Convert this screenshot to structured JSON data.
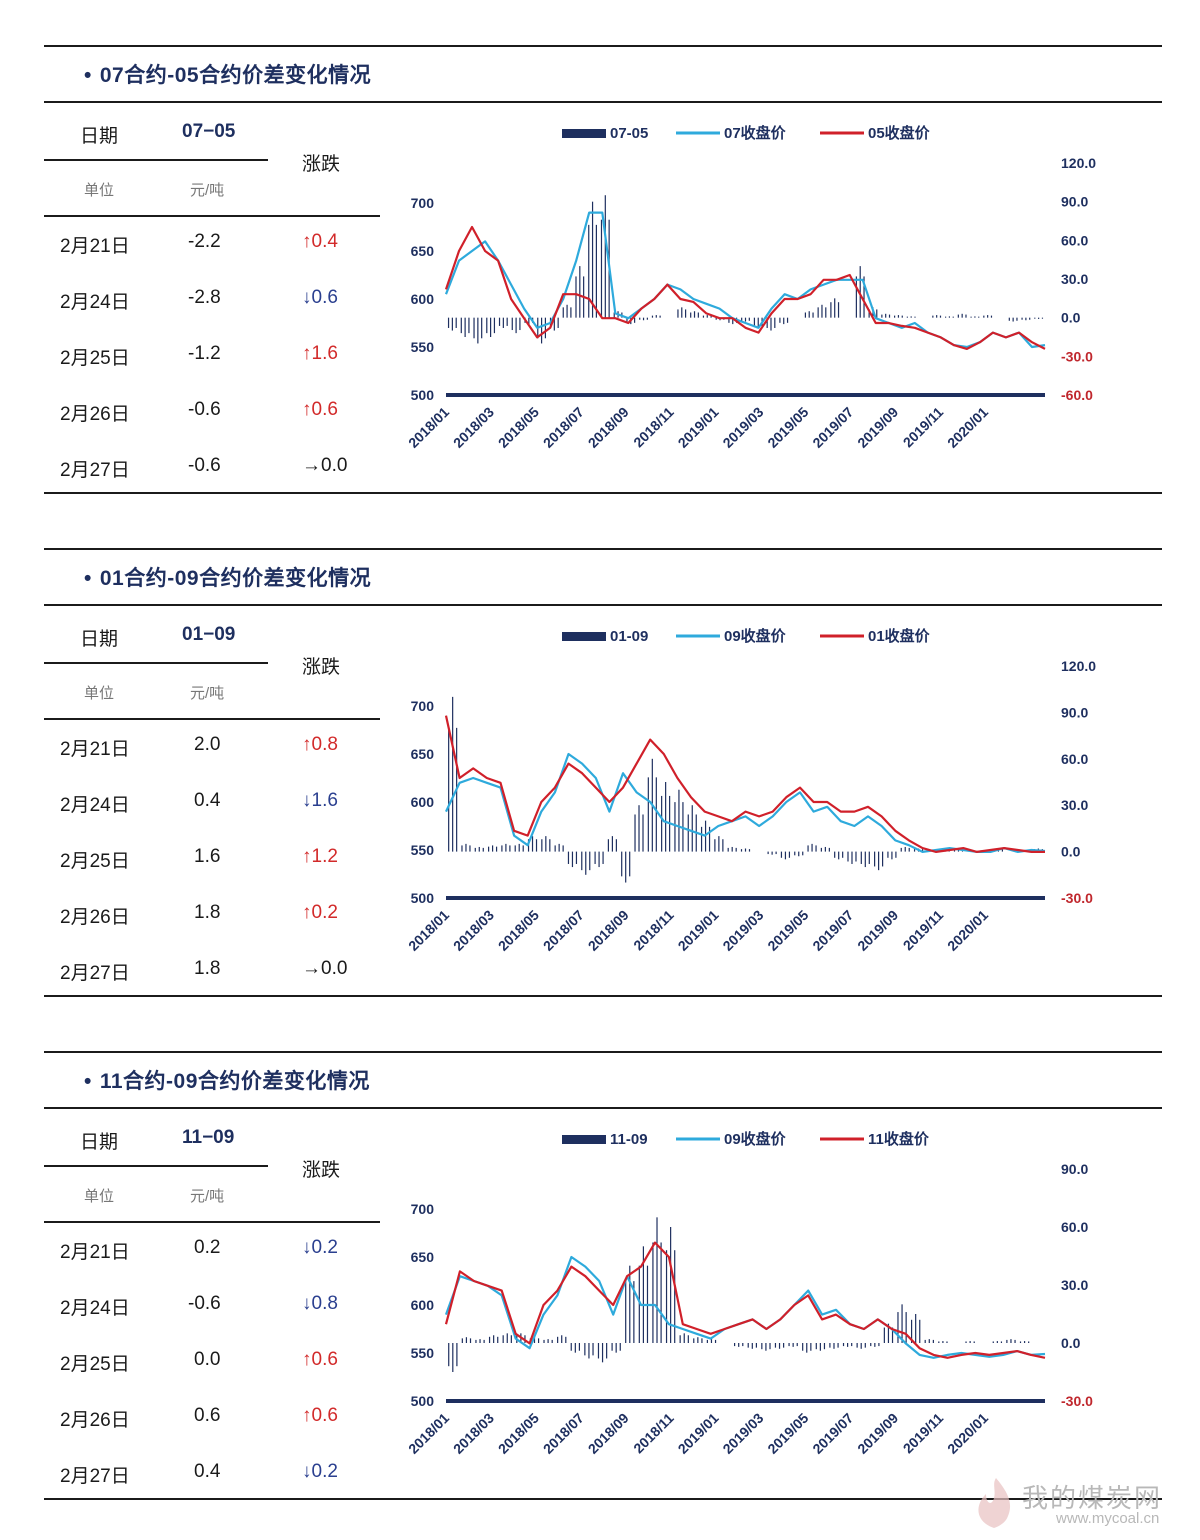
{
  "watermark": {
    "site": "我的煤炭网",
    "url": "www.mycoal.cn"
  },
  "colors": {
    "bar": "#1e2f5f",
    "line_a": "#2eaadc",
    "line_b": "#d0202a",
    "rule": "#1b1b1b"
  },
  "sections": [
    {
      "title": "07合约-05合约价差变化情况",
      "table": {
        "date_label": "日期",
        "code": "07−05",
        "change_label": "涨跌",
        "unit_label": "单位",
        "unit": "元/吨",
        "rows": [
          {
            "date": "2月21日",
            "value": "-2.2",
            "arrow": "↑",
            "dir": "up",
            "change": "0.4"
          },
          {
            "date": "2月24日",
            "value": "-2.8",
            "arrow": "↓",
            "dir": "down",
            "change": "0.6"
          },
          {
            "date": "2月25日",
            "value": "-1.2",
            "arrow": "↑",
            "dir": "up",
            "change": "1.6"
          },
          {
            "date": "2月26日",
            "value": "-0.6",
            "arrow": "↑",
            "dir": "up",
            "change": "0.6"
          },
          {
            "date": "2月27日",
            "value": "-0.6",
            "arrow": "→",
            "dir": "flat",
            "change": "0.0"
          }
        ]
      },
      "chart_data": {
        "type": "bar+line",
        "legend": [
          "07-05",
          "07收盘价",
          "05收盘价"
        ],
        "x_ticks": [
          "2018/01",
          "2018/03",
          "2018/05",
          "2018/07",
          "2018/09",
          "2018/11",
          "2019/01",
          "2019/03",
          "2019/05",
          "2019/07",
          "2019/09",
          "2019/11",
          "2020/01"
        ],
        "left_axis": {
          "ticks": [
            "700",
            "650",
            "600",
            "550",
            "500"
          ],
          "range": [
            500,
            700
          ]
        },
        "right_axis": {
          "ticks": [
            "120.0",
            "90.0",
            "60.0",
            "30.0",
            "0.0",
            "-30.0",
            "-60.0"
          ],
          "range": [
            -60,
            120
          ]
        },
        "series": [
          {
            "name": "07收盘价",
            "axis": "left",
            "values": [
              605,
              640,
              650,
              660,
              640,
              615,
              590,
              570,
              575,
              600,
              640,
              690,
              690,
              585,
              580,
              590,
              600,
              615,
              610,
              600,
              595,
              590,
              580,
              575,
              570,
              590,
              605,
              600,
              610,
              615,
              620,
              620,
              620,
              580,
              575,
              570,
              575,
              565,
              560,
              552,
              550,
              555,
              565,
              560,
              565,
              550,
              552
            ]
          },
          {
            "name": "05收盘价",
            "axis": "left",
            "values": [
              610,
              650,
              675,
              650,
              640,
              600,
              580,
              560,
              570,
              605,
              605,
              600,
              580,
              580,
              575,
              590,
              600,
              615,
              600,
              597,
              585,
              580,
              580,
              570,
              565,
              585,
              600,
              600,
              605,
              620,
              620,
              625,
              600,
              575,
              575,
              572,
              570,
              565,
              560,
              552,
              548,
              555,
              565,
              560,
              565,
              555,
              548
            ]
          },
          {
            "name": "07-05",
            "axis": "right",
            "values": [
              -10,
              -15,
              -20,
              -15,
              -8,
              -12,
              -5,
              -20,
              -10,
              10,
              40,
              90,
              95,
              5,
              -5,
              -2,
              2,
              0,
              8,
              5,
              2,
              -2,
              -5,
              -3,
              -8,
              -10,
              -5,
              0,
              5,
              10,
              15,
              0,
              40,
              8,
              3,
              2,
              1,
              0,
              2,
              1,
              3,
              1,
              2,
              0,
              -3,
              -2,
              -1
            ]
          }
        ]
      }
    },
    {
      "title": "01合约-09合约价差变化情况",
      "table": {
        "date_label": "日期",
        "code": "01−09",
        "change_label": "涨跌",
        "unit_label": "单位",
        "unit": "元/吨",
        "rows": [
          {
            "date": "2月21日",
            "value": "2.0",
            "arrow": "↑",
            "dir": "up",
            "change": "0.8"
          },
          {
            "date": "2月24日",
            "value": "0.4",
            "arrow": "↓",
            "dir": "down",
            "change": "1.6"
          },
          {
            "date": "2月25日",
            "value": "1.6",
            "arrow": "↑",
            "dir": "up",
            "change": "1.2"
          },
          {
            "date": "2月26日",
            "value": "1.8",
            "arrow": "↑",
            "dir": "up",
            "change": "0.2"
          },
          {
            "date": "2月27日",
            "value": "1.8",
            "arrow": "→",
            "dir": "flat",
            "change": "0.0"
          }
        ]
      },
      "chart_data": {
        "type": "bar+line",
        "legend": [
          "01-09",
          "09收盘价",
          "01收盘价"
        ],
        "x_ticks": [
          "2018/01",
          "2018/03",
          "2018/05",
          "2018/07",
          "2018/09",
          "2018/11",
          "2019/01",
          "2019/03",
          "2019/05",
          "2019/07",
          "2019/09",
          "2019/11",
          "2020/01"
        ],
        "left_axis": {
          "ticks": [
            "700",
            "650",
            "600",
            "550",
            "500"
          ],
          "range": [
            500,
            700
          ]
        },
        "right_axis": {
          "ticks": [
            "120.0",
            "90.0",
            "60.0",
            "30.0",
            "0.0",
            "-30.0"
          ],
          "range": [
            -30,
            120
          ]
        },
        "series": [
          {
            "name": "09收盘价",
            "axis": "left",
            "values": [
              590,
              620,
              625,
              620,
              615,
              565,
              555,
              590,
              610,
              650,
              640,
              625,
              590,
              630,
              610,
              600,
              580,
              575,
              570,
              565,
              575,
              580,
              585,
              575,
              585,
              600,
              610,
              590,
              595,
              580,
              575,
              585,
              575,
              560,
              555,
              548,
              550,
              552,
              550,
              548,
              548,
              552,
              548,
              550,
              549
            ]
          },
          {
            "name": "01收盘价",
            "axis": "left",
            "values": [
              690,
              625,
              635,
              625,
              620,
              570,
              565,
              600,
              615,
              640,
              630,
              615,
              600,
              615,
              640,
              665,
              650,
              625,
              605,
              590,
              585,
              580,
              590,
              585,
              590,
              605,
              615,
              600,
              600,
              590,
              590,
              595,
              585,
              570,
              560,
              552,
              548,
              550,
              552,
              548,
              550,
              552,
              550,
              548,
              548
            ]
          },
          {
            "name": "01-09",
            "axis": "right",
            "values": [
              100,
              5,
              3,
              4,
              5,
              5,
              10,
              10,
              5,
              -10,
              -15,
              -10,
              10,
              -20,
              30,
              60,
              45,
              40,
              30,
              20,
              10,
              3,
              2,
              0,
              -2,
              -5,
              -3,
              5,
              3,
              -5,
              -8,
              -10,
              -12,
              -5,
              3,
              2,
              0,
              1,
              2,
              0,
              1,
              2,
              0,
              1,
              2
            ]
          }
        ]
      }
    },
    {
      "title": "11合约-09合约价差变化情况",
      "table": {
        "date_label": "日期",
        "code": "11−09",
        "change_label": "涨跌",
        "unit_label": "单位",
        "unit": "元/吨",
        "rows": [
          {
            "date": "2月21日",
            "value": "0.2",
            "arrow": "↓",
            "dir": "down",
            "change": "0.2"
          },
          {
            "date": "2月24日",
            "value": "-0.6",
            "arrow": "↓",
            "dir": "down",
            "change": "0.8"
          },
          {
            "date": "2月25日",
            "value": "0.0",
            "arrow": "↑",
            "dir": "up",
            "change": "0.6"
          },
          {
            "date": "2月26日",
            "value": "0.6",
            "arrow": "↑",
            "dir": "up",
            "change": "0.6"
          },
          {
            "date": "2月27日",
            "value": "0.4",
            "arrow": "↓",
            "dir": "down",
            "change": "0.2"
          }
        ]
      },
      "chart_data": {
        "type": "bar+line",
        "legend": [
          "11-09",
          "09收盘价",
          "11收盘价"
        ],
        "x_ticks": [
          "2018/01",
          "2018/03",
          "2018/05",
          "2018/07",
          "2018/09",
          "2018/11",
          "2019/01",
          "2019/03",
          "2019/05",
          "2019/07",
          "2019/09",
          "2019/11",
          "2020/01"
        ],
        "left_axis": {
          "ticks": [
            "700",
            "650",
            "600",
            "550",
            "500"
          ],
          "range": [
            500,
            700
          ]
        },
        "right_axis": {
          "ticks": [
            "90.0",
            "60.0",
            "30.0",
            "0.0",
            "-30.0"
          ],
          "range": [
            -30,
            90
          ]
        },
        "series": [
          {
            "name": "09收盘价",
            "axis": "left",
            "values": [
              590,
              630,
              625,
              620,
              610,
              565,
              555,
              590,
              610,
              650,
              640,
              625,
              590,
              630,
              600,
              600,
              580,
              575,
              570,
              565,
              575,
              580,
              585,
              575,
              585,
              600,
              615,
              590,
              595,
              580,
              575,
              585,
              575,
              560,
              548,
              545,
              548,
              550,
              548,
              546,
              548,
              552,
              548,
              549
            ]
          },
          {
            "name": "11收盘价",
            "axis": "left",
            "values": [
              580,
              635,
              625,
              620,
              615,
              570,
              560,
              600,
              615,
              640,
              630,
              615,
              600,
              630,
              640,
              665,
              650,
              580,
              575,
              570,
              575,
              580,
              585,
              575,
              585,
              600,
              610,
              585,
              590,
              580,
              575,
              585,
              575,
              570,
              555,
              548,
              545,
              548,
              550,
              548,
              550,
              552,
              548,
              545
            ]
          },
          {
            "name": "11-09",
            "axis": "right",
            "values": [
              -15,
              3,
              2,
              4,
              5,
              5,
              3,
              2,
              4,
              -5,
              -8,
              -10,
              -5,
              40,
              50,
              65,
              60,
              5,
              3,
              2,
              0,
              -2,
              -3,
              -4,
              -3,
              -2,
              -5,
              -4,
              -3,
              -2,
              -3,
              -2,
              10,
              20,
              15,
              2,
              1,
              0,
              1,
              0,
              1,
              2,
              1,
              0
            ]
          }
        ]
      }
    }
  ]
}
